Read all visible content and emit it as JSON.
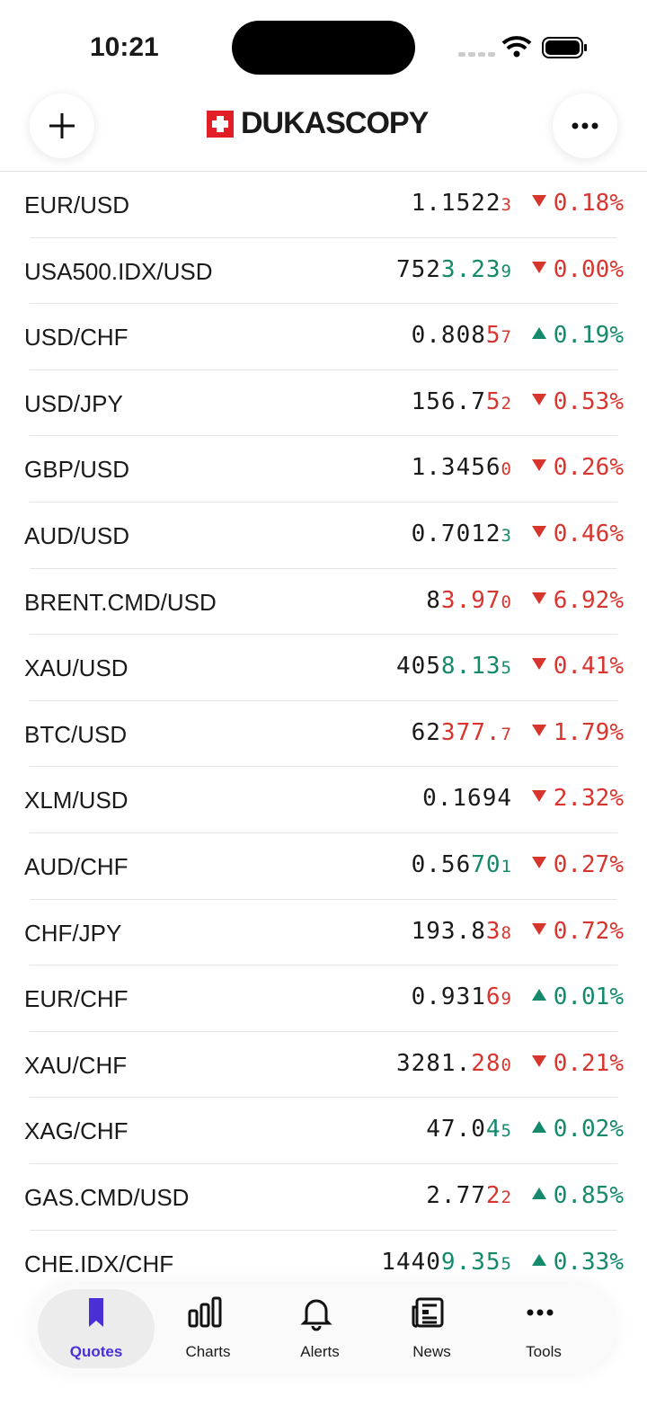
{
  "status": {
    "time": "10:21"
  },
  "header": {
    "brand": "DUKASCOPY"
  },
  "quotes": [
    {
      "name": "EUR/USD",
      "price": {
        "base": "1.1522",
        "pip": "3"
      },
      "tick": "down",
      "direction": "down",
      "change": "0.18%"
    },
    {
      "name": "USA500.IDX/USD",
      "price": {
        "base": "752",
        "big": "3.23",
        "pip": "9"
      },
      "tick": "up",
      "direction": "down",
      "change": "0.00%"
    },
    {
      "name": "USD/CHF",
      "price": {
        "base": "0.808",
        "big": "5",
        "pip": "7"
      },
      "tick": "down",
      "direction": "up",
      "change": "0.19%"
    },
    {
      "name": "USD/JPY",
      "price": {
        "base": "156.7",
        "big": "5",
        "pip": "2"
      },
      "tick": "down",
      "direction": "down",
      "change": "0.53%"
    },
    {
      "name": "GBP/USD",
      "price": {
        "base": "1.3456",
        "pip": "0"
      },
      "tick": "down",
      "direction": "down",
      "change": "0.26%"
    },
    {
      "name": "AUD/USD",
      "price": {
        "base": "0.7012",
        "pip": "3"
      },
      "tick": "up",
      "direction": "down",
      "change": "0.46%"
    },
    {
      "name": "BRENT.CMD/USD",
      "price": {
        "base": "8",
        "big": "3.97",
        "pip": "0"
      },
      "tick": "down",
      "direction": "down",
      "change": "6.92%"
    },
    {
      "name": "XAU/USD",
      "price": {
        "base": "405",
        "big": "8.13",
        "pip": "5"
      },
      "tick": "up",
      "direction": "down",
      "change": "0.41%"
    },
    {
      "name": "BTC/USD",
      "price": {
        "base": "62",
        "big": "377.",
        "pip": "7"
      },
      "tick": "down",
      "direction": "down",
      "change": "1.79%"
    },
    {
      "name": "XLM/USD",
      "price": {
        "base": "0.1694"
      },
      "tick": "down",
      "direction": "down",
      "change": "2.32%"
    },
    {
      "name": "AUD/CHF",
      "price": {
        "base": "0.56",
        "big": "70",
        "pip": "1"
      },
      "tick": "up",
      "direction": "down",
      "change": "0.27%"
    },
    {
      "name": "CHF/JPY",
      "price": {
        "base": "193.8",
        "big": "3",
        "pip": "8"
      },
      "tick": "down",
      "direction": "down",
      "change": "0.72%"
    },
    {
      "name": "EUR/CHF",
      "price": {
        "base": "0.931",
        "big": "6",
        "pip": "9"
      },
      "tick": "down",
      "direction": "up",
      "change": "0.01%"
    },
    {
      "name": "XAU/CHF",
      "price": {
        "base": "3281.",
        "big": "28",
        "pip": "0"
      },
      "tick": "down",
      "direction": "down",
      "change": "0.21%"
    },
    {
      "name": "XAG/CHF",
      "price": {
        "base": "47.0",
        "big": "4",
        "pip": "5"
      },
      "tick": "up",
      "direction": "up",
      "change": "0.02%"
    },
    {
      "name": "GAS.CMD/USD",
      "price": {
        "base": "2.77",
        "big": "2",
        "pip": "2"
      },
      "tick": "down",
      "direction": "up",
      "change": "0.85%"
    },
    {
      "name": "CHE.IDX/CHF",
      "price": {
        "base": "1440",
        "big": "9.35",
        "pip": "5"
      },
      "tick": "up",
      "direction": "up",
      "change": "0.33%"
    }
  ],
  "tabs": [
    {
      "label": "Quotes",
      "active": true
    },
    {
      "label": "Charts"
    },
    {
      "label": "Alerts"
    },
    {
      "label": "News"
    },
    {
      "label": "Tools"
    }
  ]
}
